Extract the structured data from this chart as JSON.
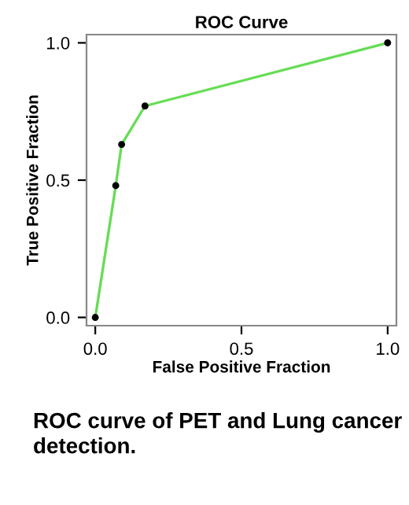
{
  "chart_data": {
    "type": "line",
    "title": "ROC Curve",
    "xlabel": "False Positive Fraction",
    "ylabel": "True Positive Fraction",
    "x": [
      0,
      0.07,
      0.09,
      0.17,
      1.0
    ],
    "series": [
      {
        "color": "#66dd55",
        "values": [
          0,
          0.48,
          0.63,
          0.77,
          1.0
        ]
      }
    ],
    "xlim": [
      -0.03,
      1.03
    ],
    "ylim": [
      -0.03,
      1.03
    ],
    "xticks": [
      {
        "value": 0,
        "label": "0.0"
      },
      0.5,
      {
        "value": 1,
        "label": "1.0"
      }
    ],
    "yticks": [
      {
        "value": 0,
        "label": "0.0"
      },
      0.5,
      {
        "value": 1,
        "label": "1.0"
      }
    ],
    "marker": "circle",
    "line_style": "solid",
    "grid": false,
    "legend": false,
    "annotations": [
      "ROC curve of PET and Lung cancer detection."
    ]
  }
}
